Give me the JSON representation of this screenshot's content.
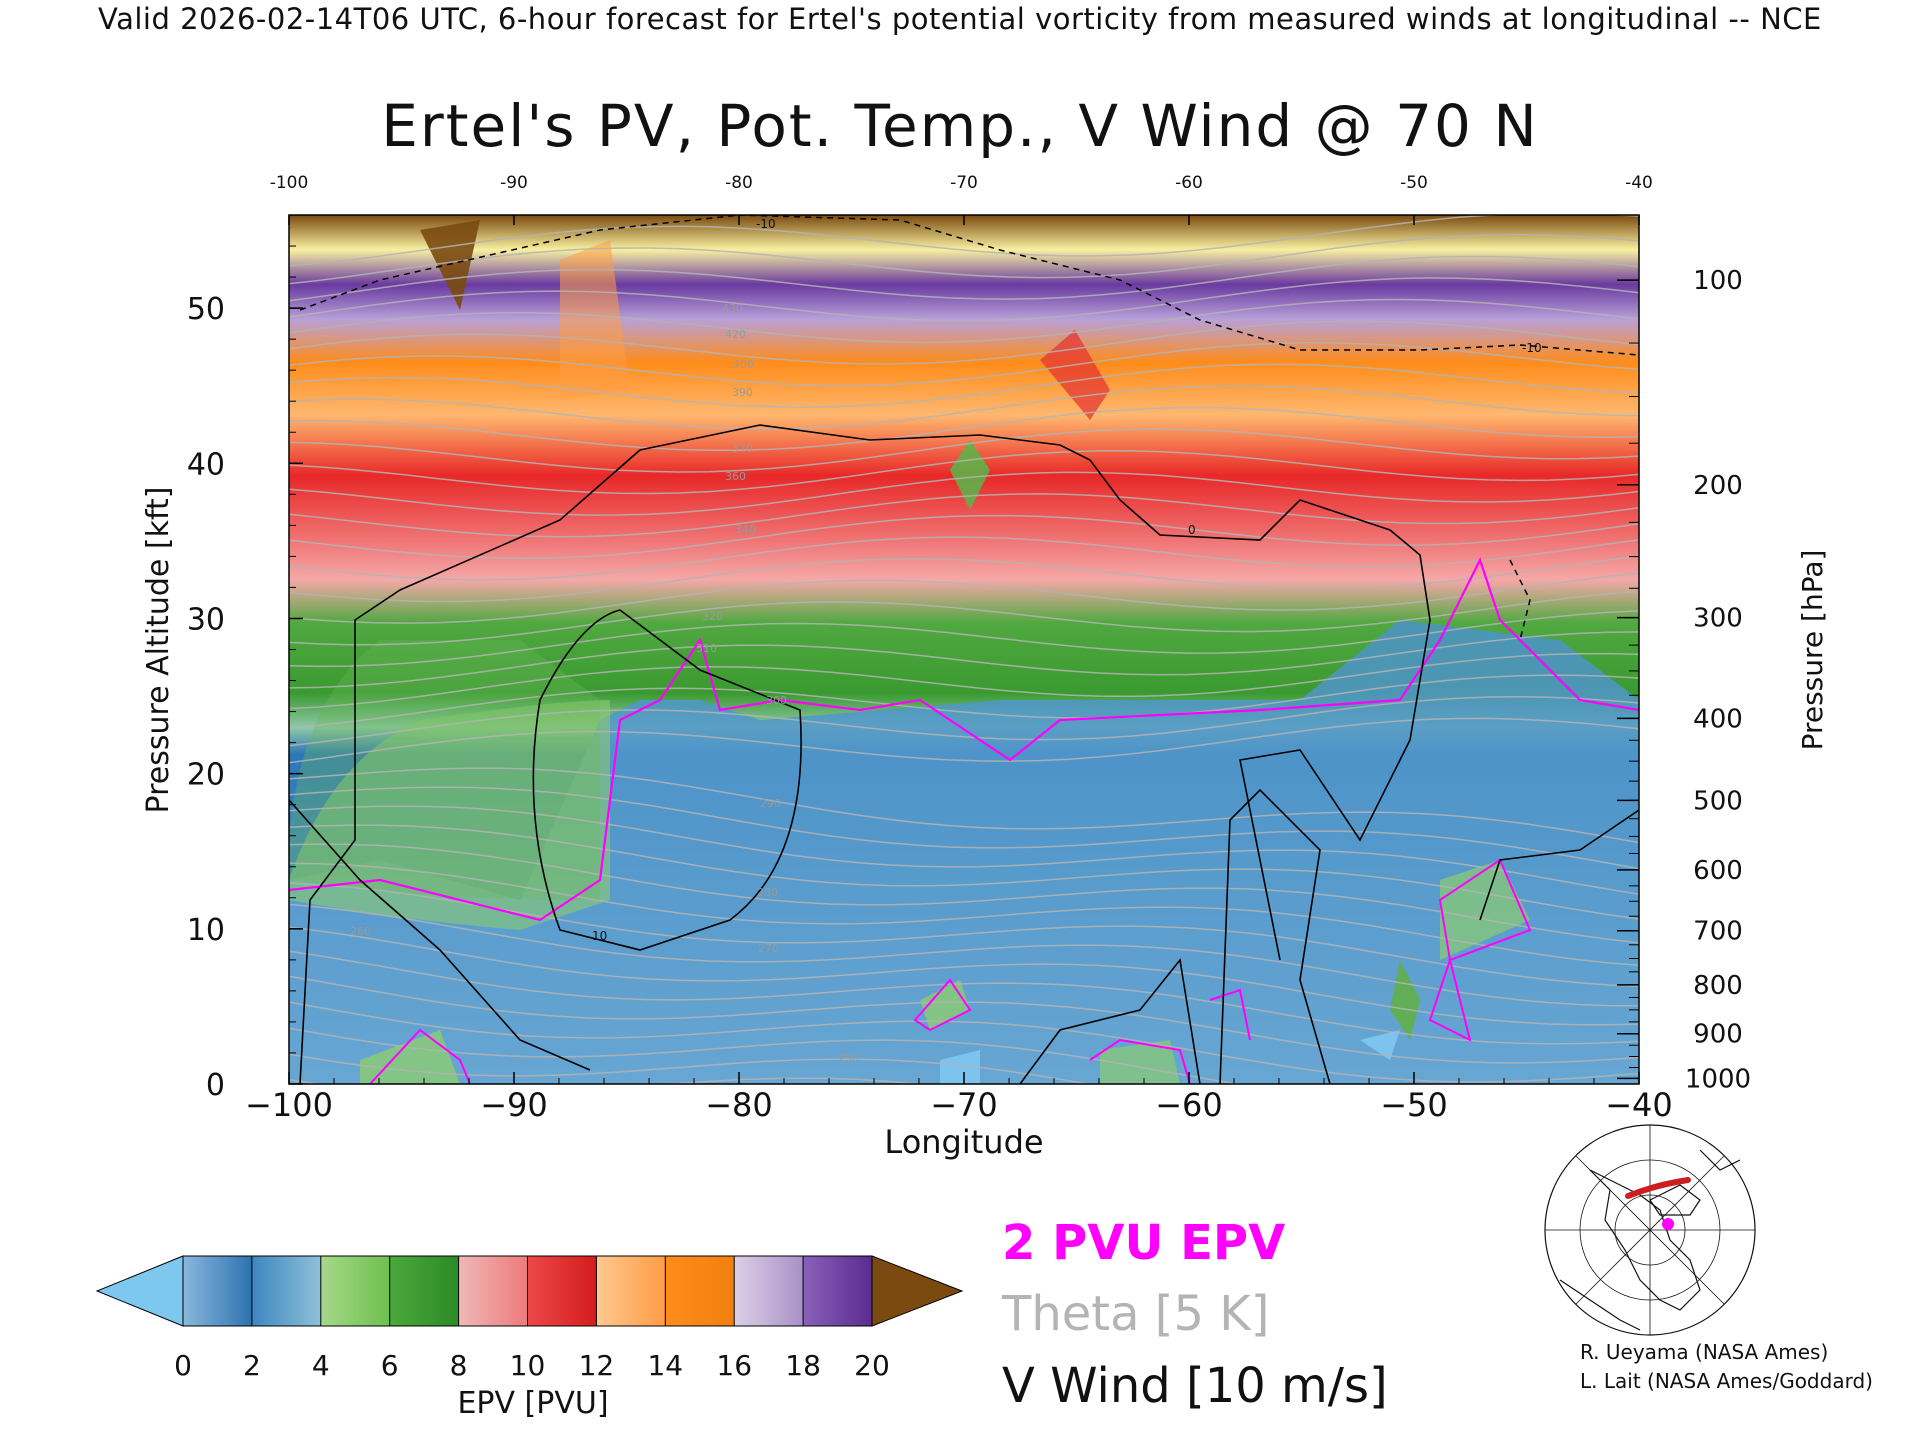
{
  "header": {
    "banner": "Valid 2026-02-14T06 UTC, 6-hour forecast for Ertel's potential vorticity from measured winds at longitudinal -- NCE",
    "title": "Ertel's PV, Pot. Temp., V Wind @ 70 N"
  },
  "chart_data": {
    "type": "heatmap",
    "title": "Ertel's PV, Pot. Temp., V Wind @ 70 N",
    "xlabel": "Longitude",
    "ylabel_left": "Pressure Altitude [kft]",
    "ylabel_right": "Pressure [hPa]",
    "xlim": [
      -100,
      -40
    ],
    "ylim": [
      0,
      56
    ],
    "x_ticks": [
      -100,
      -90,
      -80,
      -70,
      -60,
      -50,
      -40
    ],
    "x_tick_labels": [
      "−100",
      "−90",
      "−80",
      "−70",
      "−60",
      "−50",
      "−40"
    ],
    "y_ticks": [
      0,
      10,
      20,
      30,
      40,
      50
    ],
    "pressure_ticks": [
      100,
      200,
      300,
      400,
      500,
      600,
      700,
      800,
      900,
      1000
    ],
    "pressure_tick_labels": [
      "100",
      "200",
      "300",
      "400",
      "500",
      "600",
      "700",
      "800",
      "900",
      "1000"
    ],
    "colorbar": {
      "label": "EPV [PVU]",
      "ticks": [
        0,
        2,
        4,
        6,
        8,
        10,
        12,
        14,
        16,
        18,
        20
      ],
      "tick_labels": [
        "0",
        "2",
        "4",
        "6",
        "8",
        "10",
        "12",
        "14",
        "16",
        "18",
        "20"
      ],
      "under_color": "#7ec8f0",
      "over_color": "#7a4a10",
      "bins": [
        [
          "#8bb8dc",
          "#2d72b0"
        ],
        [
          "#3d86c0",
          "#8fc0d8"
        ],
        [
          "#a6d88a",
          "#6ec04e"
        ],
        [
          "#4ba83a",
          "#2c8a28"
        ],
        [
          "#f0b8b8",
          "#ee7a7a"
        ],
        [
          "#ec4848",
          "#d41c1c"
        ],
        [
          "#ffc890",
          "#ff9c46"
        ],
        [
          "#ff8c1a",
          "#f08010"
        ],
        [
          "#ddd0e6",
          "#a890c8"
        ],
        [
          "#8a60b8",
          "#5a2c90"
        ],
        [
          "#f8f0a0",
          "#e6d860"
        ]
      ]
    },
    "contours": {
      "theta_labels": [
        "430",
        "420",
        "400",
        "390",
        "370",
        "360",
        "340",
        "320",
        "310",
        "300",
        "290",
        "280",
        "270",
        "260",
        "250"
      ],
      "vwind_labels": [
        "-10",
        "0",
        "10"
      ]
    }
  },
  "legend": {
    "epv_contour": "2 PVU EPV",
    "theta": "Theta [5 K]",
    "vwind": "V Wind [10 m/s]"
  },
  "credits": {
    "line1": "R. Ueyama (NASA Ames)",
    "line2": "L. Lait (NASA Ames/Goddard)"
  },
  "colors": {
    "epv2_contour": "#ff00ff",
    "theta_contour": "#b4b4b4",
    "vwind_contour": "#000000"
  }
}
